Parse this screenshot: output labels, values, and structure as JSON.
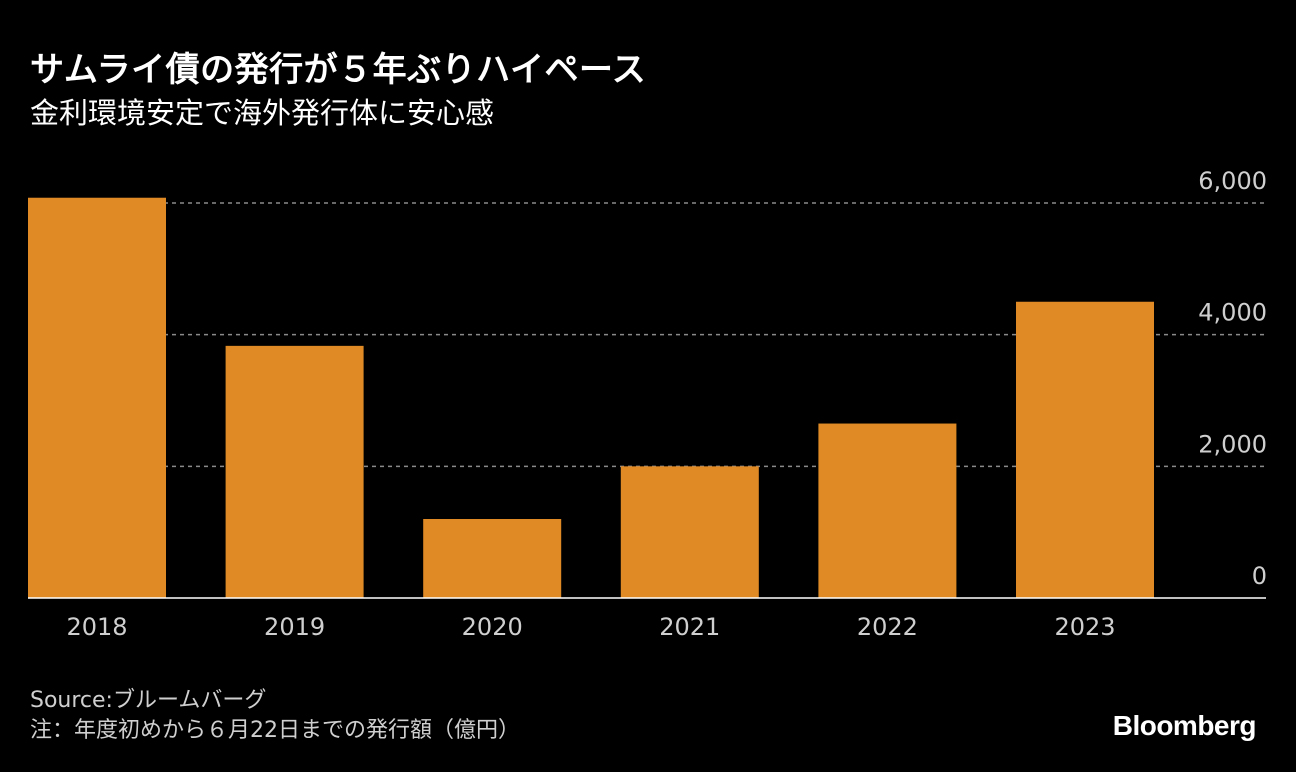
{
  "title": "サムライ債の発行が５年ぶりハイペース",
  "subtitle": "金利環境安定で海外発行体に安心感",
  "footer": {
    "source": "Source:ブルームバーグ",
    "note": "注：年度初めから６月22日までの発行額（億円）"
  },
  "brand": "Bloomberg",
  "colors": {
    "bar": "#E08A25",
    "background": "#000000",
    "grid": "#8a8a8a",
    "text": "#cfcfcf"
  },
  "chart_data": {
    "type": "bar",
    "categories": [
      "2018",
      "2019",
      "2020",
      "2021",
      "2022",
      "2023"
    ],
    "values": [
      6080,
      3830,
      1200,
      2000,
      2650,
      4500
    ],
    "ylim": [
      0,
      6000
    ],
    "yticks": [
      0,
      2000,
      4000,
      6000
    ],
    "ytick_labels": [
      "0",
      "2,000",
      "4,000",
      "6,000"
    ],
    "grid": true,
    "grid_style": "dashed",
    "y_axis_position": "right"
  }
}
